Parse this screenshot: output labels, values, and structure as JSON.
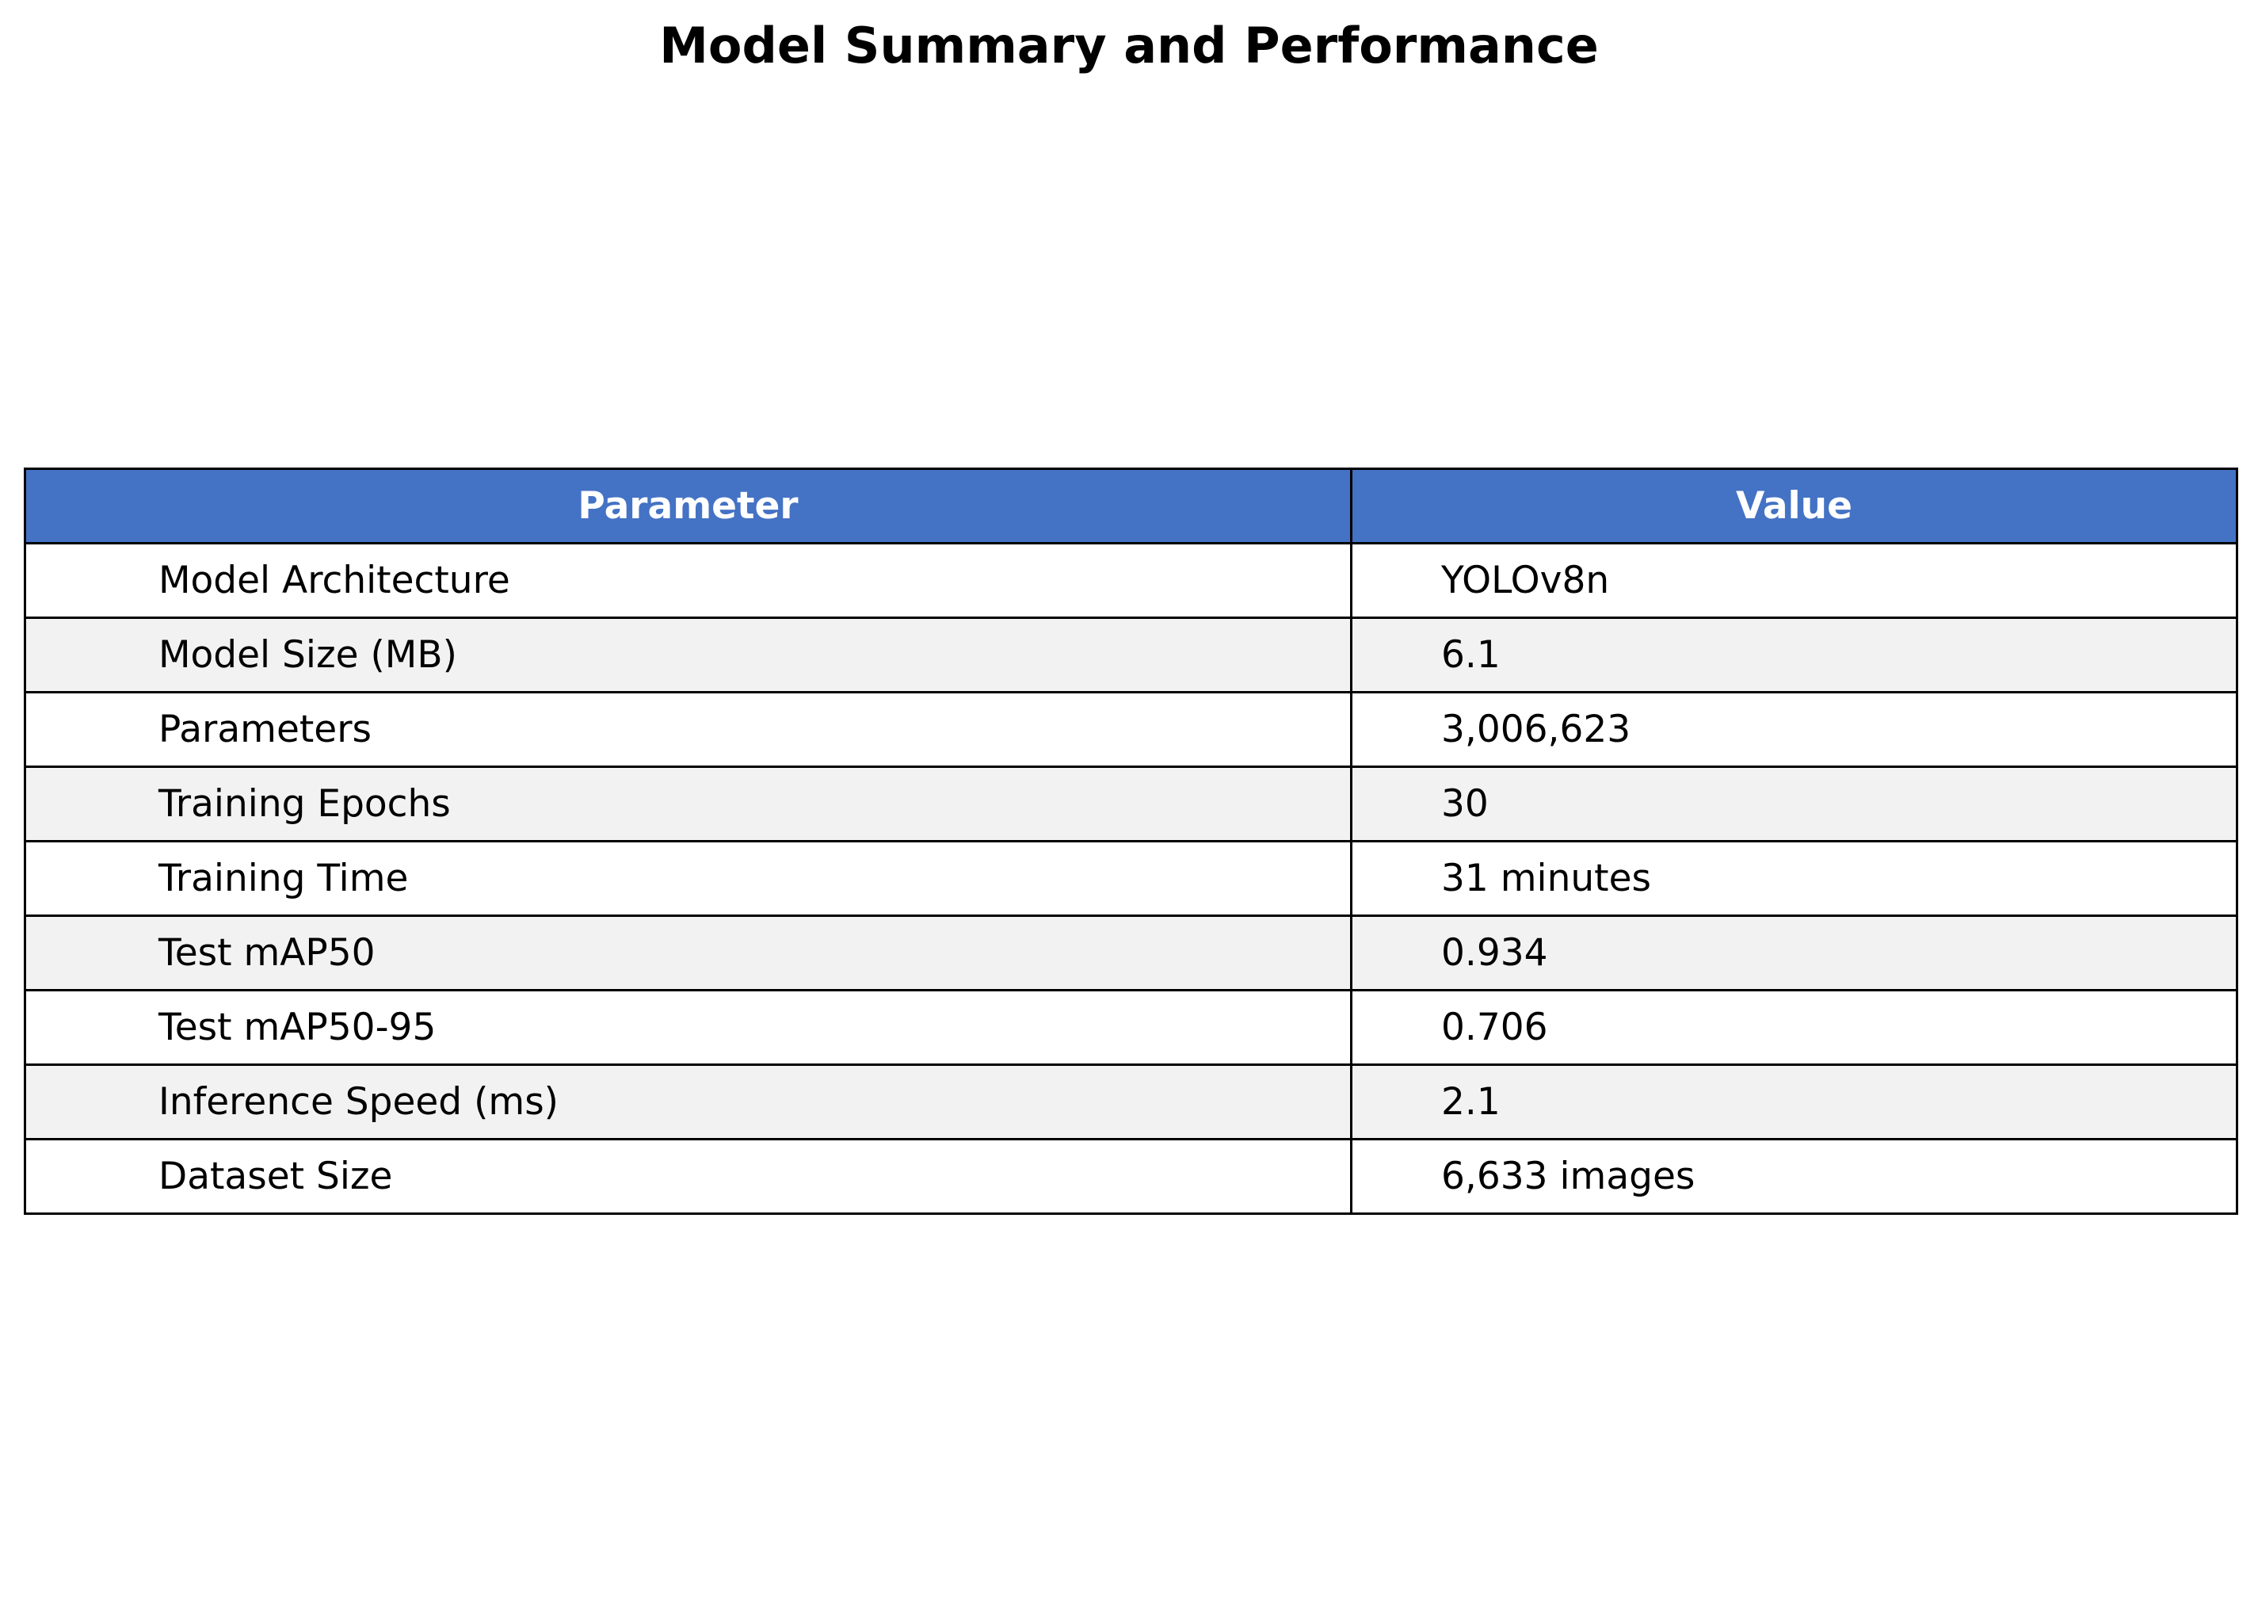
{
  "chart_data": {
    "type": "table",
    "title": "Model Summary and Performance",
    "columns": [
      "Parameter",
      "Value"
    ],
    "rows": [
      [
        "Model Architecture",
        "YOLOv8n"
      ],
      [
        "Model Size (MB)",
        "6.1"
      ],
      [
        "Parameters",
        "3,006,623"
      ],
      [
        "Training Epochs",
        "30"
      ],
      [
        "Training Time",
        "31 minutes"
      ],
      [
        "Test mAP50",
        "0.934"
      ],
      [
        "Test mAP50-95",
        "0.706"
      ],
      [
        "Inference Speed (ms)",
        "2.1"
      ],
      [
        "Dataset Size",
        "6,633 images"
      ]
    ]
  },
  "colors": {
    "header_bg": "#4472c4",
    "header_text": "#ffffff",
    "row_odd_bg": "#ffffff",
    "row_even_bg": "#f2f2f2",
    "border": "#000000"
  }
}
